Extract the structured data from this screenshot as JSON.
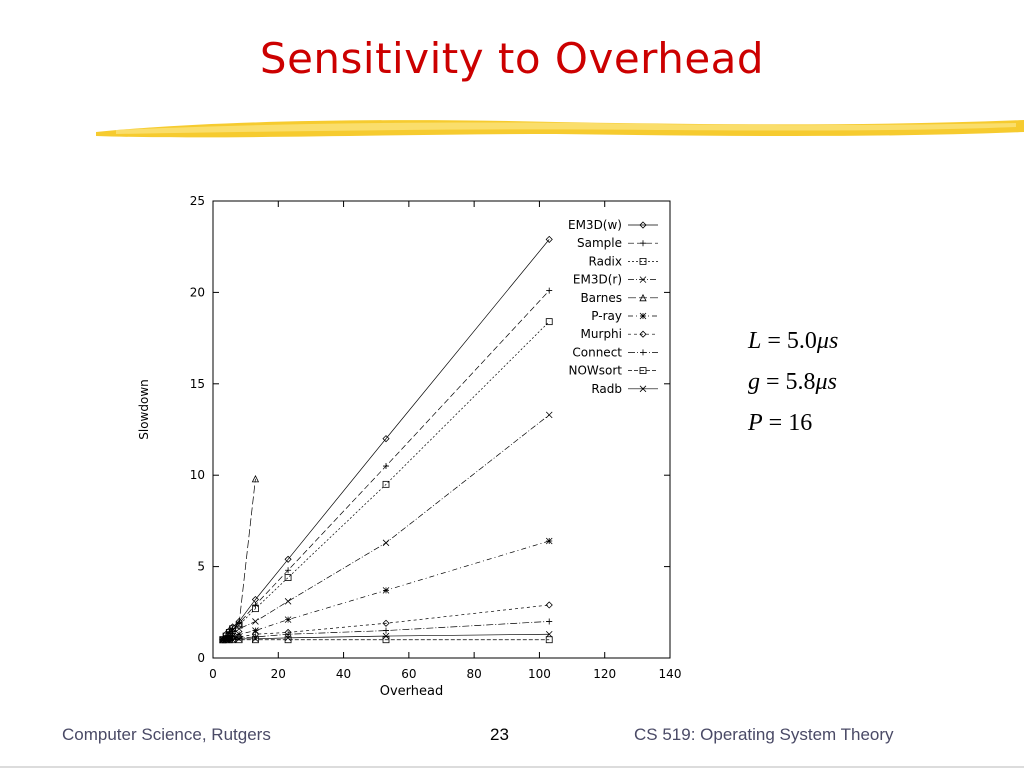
{
  "slide": {
    "title": "Sensitivity to Overhead",
    "footer_left": "Computer Science, Rutgers",
    "page_number": "23",
    "footer_right": "CS 519: Operating System Theory",
    "brush_color": "#f5c518",
    "title_color": "#cc0000"
  },
  "params": [
    {
      "var": "L",
      "eq": " = ",
      "value": "5.0",
      "unit_mu": "μ",
      "unit_s": "s"
    },
    {
      "var": "g",
      "eq": " = ",
      "value": "5.8",
      "unit_mu": "μ",
      "unit_s": "s"
    },
    {
      "var": "P",
      "eq": " = ",
      "value": "16",
      "unit_mu": "",
      "unit_s": ""
    }
  ],
  "chart_data": {
    "type": "line",
    "xlabel": "Overhead",
    "ylabel": "Slowdown",
    "xlim": [
      0,
      140
    ],
    "ylim": [
      0,
      25
    ],
    "xticks": [
      "0",
      "20",
      "40",
      "60",
      "80",
      "100",
      "120",
      "140"
    ],
    "yticks": [
      "0",
      "5",
      "10",
      "15",
      "20",
      "25"
    ],
    "legend_position": "top-right",
    "grid": false,
    "series": [
      {
        "name": "EM3D(w)",
        "marker": "diamond",
        "dash": "",
        "x": [
          3,
          4,
          5,
          6,
          8,
          13,
          23,
          53,
          103
        ],
        "y": [
          1.0,
          1.3,
          1.5,
          1.7,
          2.0,
          3.2,
          5.4,
          12.0,
          22.9
        ]
      },
      {
        "name": "Sample",
        "marker": "plus",
        "dash": "6,3",
        "x": [
          3,
          4,
          5,
          6,
          8,
          13,
          23,
          53,
          103
        ],
        "y": [
          1.0,
          1.2,
          1.4,
          1.6,
          1.9,
          2.9,
          4.8,
          10.5,
          20.1
        ]
      },
      {
        "name": "Radix",
        "marker": "square",
        "dash": "2,2",
        "x": [
          3,
          4,
          5,
          6,
          8,
          13,
          23,
          53,
          103
        ],
        "y": [
          1.0,
          1.2,
          1.4,
          1.6,
          1.8,
          2.7,
          4.4,
          9.5,
          18.4
        ]
      },
      {
        "name": "EM3D(r)",
        "marker": "x",
        "dash": "6,2,1,2",
        "x": [
          3,
          4,
          5,
          6,
          8,
          13,
          23,
          53,
          103
        ],
        "y": [
          1.0,
          1.1,
          1.2,
          1.4,
          1.6,
          2.0,
          3.1,
          6.3,
          13.3
        ]
      },
      {
        "name": "Barnes",
        "marker": "triangle",
        "dash": "8,3",
        "x": [
          3,
          4,
          5,
          6,
          8,
          13
        ],
        "y": [
          1.0,
          1.1,
          1.3,
          1.5,
          1.9,
          9.8
        ]
      },
      {
        "name": "P-ray",
        "marker": "star",
        "dash": "5,3,1,3",
        "x": [
          3,
          4,
          5,
          6,
          8,
          13,
          23,
          53,
          103
        ],
        "y": [
          1.0,
          1.05,
          1.1,
          1.2,
          1.3,
          1.5,
          2.1,
          3.7,
          6.4
        ]
      },
      {
        "name": "Murphi",
        "marker": "diamond",
        "dash": "3,3",
        "x": [
          3,
          4,
          5,
          6,
          8,
          13,
          23,
          53,
          103
        ],
        "y": [
          1.0,
          1.0,
          1.05,
          1.1,
          1.15,
          1.3,
          1.4,
          1.9,
          2.9
        ]
      },
      {
        "name": "Connect",
        "marker": "plus",
        "dash": "7,2,1,2",
        "x": [
          3,
          4,
          5,
          6,
          8,
          13,
          23,
          53,
          103
        ],
        "y": [
          1.0,
          1.0,
          1.0,
          1.05,
          1.1,
          1.15,
          1.3,
          1.5,
          2.0
        ]
      },
      {
        "name": "NOWsort",
        "marker": "square",
        "dash": "4,2",
        "x": [
          3,
          4,
          5,
          6,
          8,
          13,
          23,
          53,
          103
        ],
        "y": [
          1.0,
          1.0,
          1.0,
          1.0,
          1.0,
          1.0,
          1.0,
          1.0,
          1.0
        ]
      },
      {
        "name": "Radb",
        "marker": "x",
        "dash": "",
        "x": [
          3,
          4,
          5,
          6,
          8,
          13,
          23,
          53,
          103
        ],
        "y": [
          1.0,
          1.0,
          1.0,
          1.0,
          1.05,
          1.05,
          1.1,
          1.2,
          1.3
        ]
      }
    ]
  }
}
